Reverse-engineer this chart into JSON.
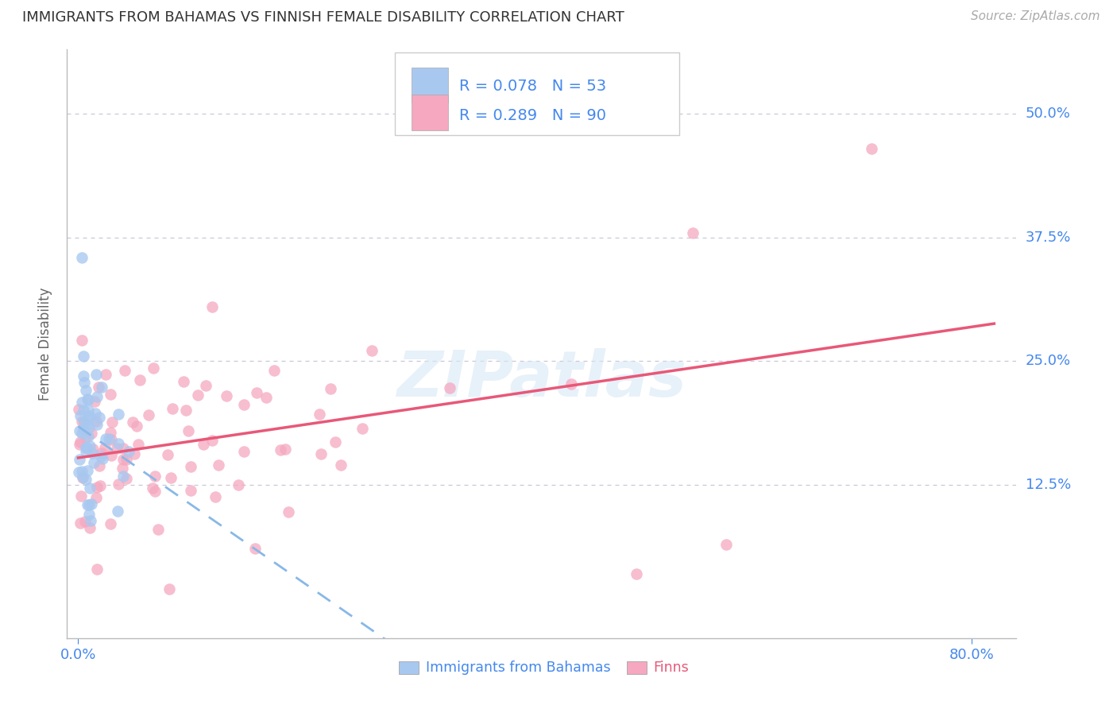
{
  "title": "IMMIGRANTS FROM BAHAMAS VS FINNISH FEMALE DISABILITY CORRELATION CHART",
  "source": "Source: ZipAtlas.com",
  "ylabel": "Female Disability",
  "color_blue": "#a8c8f0",
  "color_pink": "#f5a8c0",
  "line_blue": "#88b8e8",
  "line_pink": "#e85878",
  "background": "#ffffff",
  "grid_color": "#c8c8d8",
  "tick_color": "#4488ee",
  "source_color": "#aaaaaa",
  "title_color": "#333333",
  "axis_label_color": "#666666",
  "legend_text_color": "#333333",
  "xlim_min": -0.01,
  "xlim_max": 0.84,
  "ylim_min": -0.03,
  "ylim_max": 0.565,
  "x_tick_left_val": 0.0,
  "x_tick_right_val": 0.8,
  "x_tick_left_label": "0.0%",
  "x_tick_right_label": "80.0%",
  "y_tick_values": [
    0.125,
    0.25,
    0.375,
    0.5
  ],
  "y_tick_labels": [
    "12.5%",
    "25.0%",
    "37.5%",
    "50.0%"
  ],
  "r_blue": "0.078",
  "n_blue": "53",
  "r_pink": "0.289",
  "n_pink": "90",
  "legend_label_blue": "Immigrants from Bahamas",
  "legend_label_pink": "Finns",
  "watermark": "ZIPatlas"
}
